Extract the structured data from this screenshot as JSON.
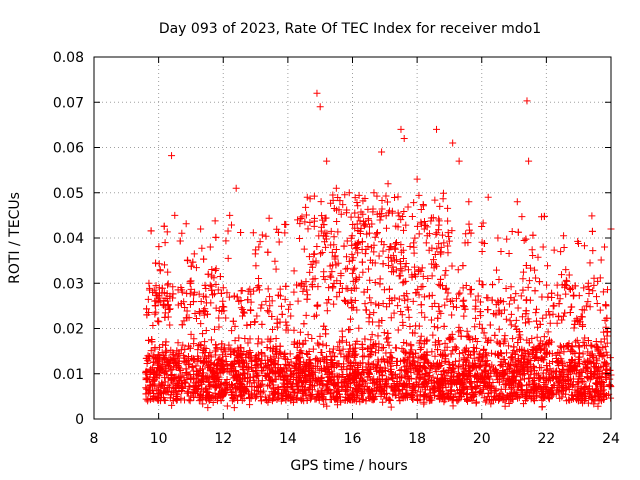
{
  "chart_data": {
    "type": "scatter",
    "title": "Day 093 of 2023, Rate Of TEC Index for receiver mdo1",
    "xlabel": "GPS time / hours",
    "ylabel": "ROTI / TECUs",
    "xlim": [
      8,
      24
    ],
    "ylim": [
      0,
      0.08
    ],
    "xticks": [
      "8",
      "10",
      "12",
      "14",
      "16",
      "18",
      "20",
      "22",
      "24"
    ],
    "yticks": [
      "0",
      "0.01",
      "0.02",
      "0.03",
      "0.04",
      "0.05",
      "0.06",
      "0.07",
      "0.08"
    ],
    "grid": true,
    "marker": "plus",
    "point_color": "#ff0000",
    "data_range_x": [
      9.6,
      24.0
    ],
    "x": [
      9.7,
      9.9,
      10.4,
      10.5,
      10.9,
      11.3,
      11.6,
      12.2,
      12.4,
      13.1,
      13.9,
      14.3,
      14.6,
      14.9,
      15.0,
      15.2,
      15.5,
      15.9,
      16.4,
      16.9,
      17.1,
      17.5,
      17.6,
      18.0,
      18.6,
      18.7,
      19.1,
      19.3,
      19.6,
      20.2,
      20.5,
      21.1,
      21.4,
      21.45,
      21.9,
      22.6,
      23.3,
      23.8,
      24.0
    ],
    "y": [
      0.03,
      0.025,
      0.0582,
      0.045,
      0.035,
      0.042,
      0.038,
      0.045,
      0.051,
      0.038,
      0.043,
      0.044,
      0.049,
      0.072,
      0.069,
      0.057,
      0.051,
      0.05,
      0.043,
      0.059,
      0.052,
      0.064,
      0.062,
      0.053,
      0.064,
      0.047,
      0.061,
      0.057,
      0.048,
      0.049,
      0.04,
      0.048,
      0.0703,
      0.057,
      0.038,
      0.033,
      0.03,
      0.038,
      0.042
    ],
    "background_band": [
      0.004,
      0.022
    ]
  }
}
